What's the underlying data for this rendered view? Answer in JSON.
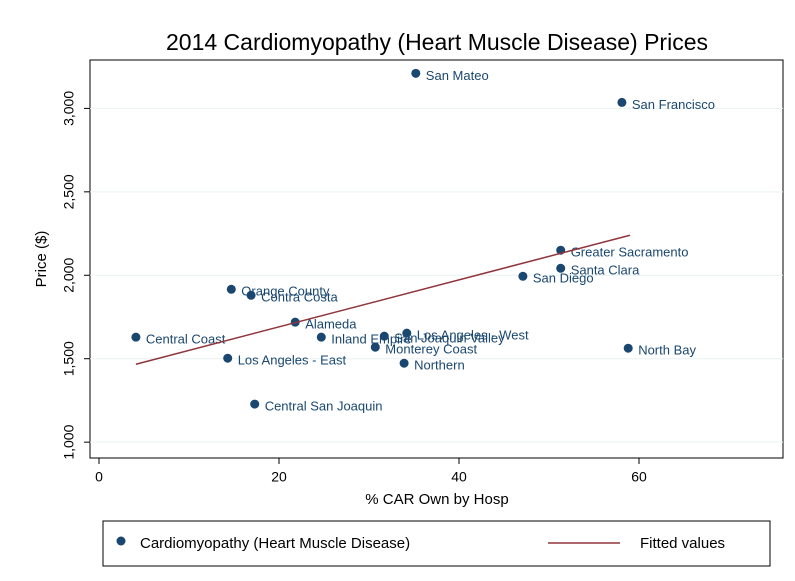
{
  "chart_data": {
    "type": "scatter",
    "title": "2014 Cardiomyopathy (Heart Muscle Disease) Prices",
    "xlabel": "% CAR Own by Hosp",
    "ylabel": "Price ($)",
    "xlim": [
      -1,
      76
    ],
    "xticks": [
      0,
      20,
      40,
      60
    ],
    "ylim": [
      905,
      3290
    ],
    "yticks": [
      {
        "value": 1000,
        "label": "1,000"
      },
      {
        "value": 1500,
        "label": "1,500"
      },
      {
        "value": 2000,
        "label": "2,000"
      },
      {
        "value": 2500,
        "label": "2,500"
      },
      {
        "value": 3000,
        "label": "3,000"
      }
    ],
    "grid": true,
    "legend": "bottom",
    "series": [
      {
        "name": "Cardiomyopathy (Heart Muscle Disease)",
        "color": "#1a476f",
        "mode": "markers",
        "labels": [
          "San Mateo",
          "San Francisco",
          "Greater Sacramento",
          "Santa Clara",
          "San Diego",
          "Orange County",
          "Contra Costa",
          "Alameda",
          "Central Coast",
          "Inland Empire",
          "San Joaquin Valley",
          "Los Angeles - West",
          "Monterey Coast",
          "North Bay",
          "Los Angeles - East",
          "Northern",
          "Central San Joaquin"
        ],
        "x": [
          35.2,
          58.1,
          51.3,
          51.3,
          47.1,
          14.7,
          16.9,
          21.8,
          4.1,
          24.7,
          31.7,
          34.2,
          30.7,
          58.8,
          14.3,
          33.9,
          17.3
        ],
        "values": [
          3210,
          3036,
          2150,
          2042,
          1994,
          1916,
          1880,
          1719,
          1629,
          1629,
          1635,
          1653,
          1569,
          1563,
          1503,
          1473,
          1228
        ]
      },
      {
        "name": "Fitted values",
        "color": "#90353b",
        "mode": "line",
        "x": [
          4.1,
          59.0
        ],
        "values": [
          1467,
          2240
        ]
      }
    ]
  }
}
